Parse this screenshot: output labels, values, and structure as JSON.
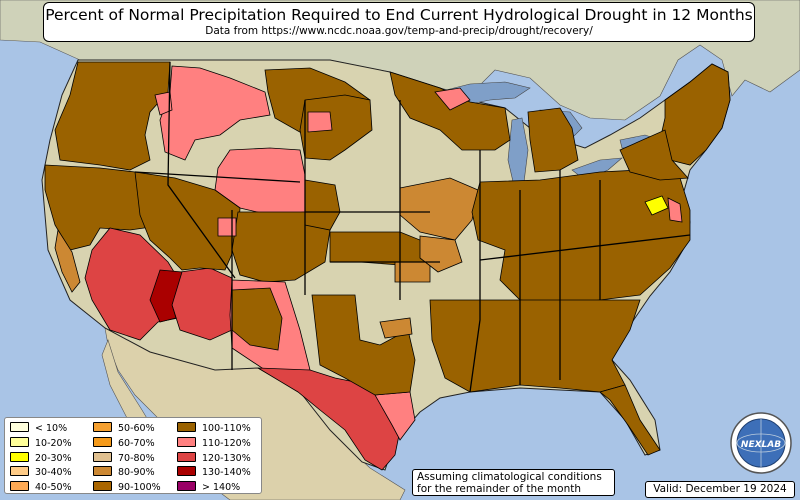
{
  "title": "Percent of Normal Precipitation Required to End Current Hydrological Drought in 12 Months",
  "subtitle": "Data from https://www.ncdc.noaa.gov/temp-and-precip/drought/recovery/",
  "legend": [
    {
      "label": "< 10%",
      "color": "#ffffdd"
    },
    {
      "label": "10-20%",
      "color": "#ffff99"
    },
    {
      "label": "20-30%",
      "color": "#ffff00"
    },
    {
      "label": "30-40%",
      "color": "#ffcc88"
    },
    {
      "label": "40-50%",
      "color": "#ffaa55"
    },
    {
      "label": "50-60%",
      "color": "#f5a030"
    },
    {
      "label": "60-70%",
      "color": "#f59a1a"
    },
    {
      "label": "70-80%",
      "color": "#e0c090"
    },
    {
      "label": "80-90%",
      "color": "#cc8833"
    },
    {
      "label": "90-100%",
      "color": "#aa6600"
    },
    {
      "label": "100-110%",
      "color": "#9a6200"
    },
    {
      "label": "110-120%",
      "color": "#ff8080"
    },
    {
      "label": "120-130%",
      "color": "#dd4444"
    },
    {
      "label": "130-140%",
      "color": "#aa0000"
    },
    {
      "label": "> 140%",
      "color": "#990066"
    }
  ],
  "note_line1": "Assuming climatological conditions",
  "note_line2": "for the remainder of the month",
  "valid": "Valid: December 19 2024",
  "logo_text": "NEXLAB",
  "colors": {
    "ocean": "#a9c4e6",
    "land": "#d8d3b0",
    "canada": "#cfd2b9",
    "mexico": "#dcd1ab",
    "lakes": "#7f9fc8"
  }
}
